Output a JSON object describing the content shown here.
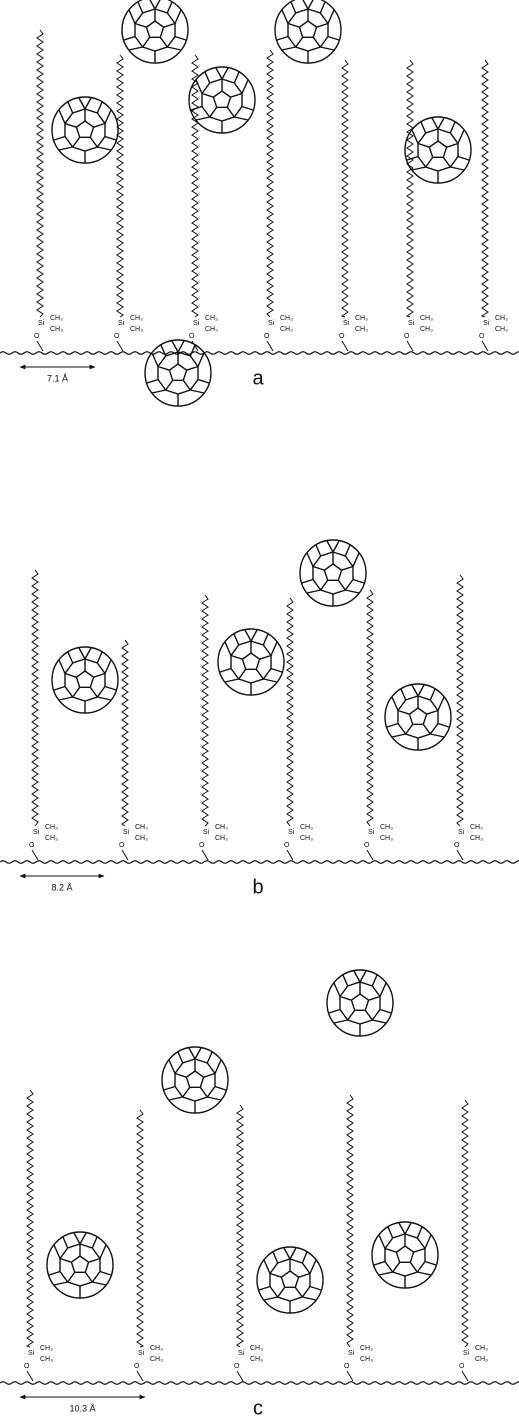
{
  "panels": [
    {
      "label": "a",
      "spacing": "7.1 Å",
      "chains": [
        {
          "si": "Si",
          "methyls": [
            "CH₃",
            "CH₃"
          ],
          "oxygen": "O"
        },
        {
          "si": "Si",
          "methyls": [
            "CH₃",
            "CH₃"
          ],
          "oxygen": "O"
        },
        {
          "si": "Si",
          "methyls": [
            "CH₃",
            "CH₃"
          ],
          "oxygen": "O"
        },
        {
          "si": "Si",
          "methyls": [
            "CH₃",
            "CH₃"
          ],
          "oxygen": "O"
        },
        {
          "si": "Si",
          "methyls": [
            "CH₃",
            "CH₃"
          ],
          "oxygen": "O"
        },
        {
          "si": "Si",
          "methyls": [
            "CH₃",
            "CH₃"
          ],
          "oxygen": "O"
        },
        {
          "si": "Si",
          "methyls": [
            "CH₃",
            "CH₃"
          ],
          "oxygen": "O"
        }
      ]
    },
    {
      "label": "b",
      "spacing": "8.2 Å",
      "chains": [
        {
          "si": "Si",
          "methyls": [
            "CH₃",
            "CH₃"
          ],
          "oxygen": "O"
        },
        {
          "si": "Si",
          "methyls": [
            "CH₃",
            "CH₃"
          ],
          "oxygen": "O"
        },
        {
          "si": "Si",
          "methyls": [
            "CH₃",
            "CH₃"
          ],
          "oxygen": "O"
        },
        {
          "si": "Si",
          "methyls": [
            "CH₃",
            "CH₃"
          ],
          "oxygen": "O"
        },
        {
          "si": "Si",
          "methyls": [
            "CH₃",
            "CH₃"
          ],
          "oxygen": "O"
        },
        {
          "si": "Si",
          "methyls": [
            "CH₃",
            "CH₃"
          ],
          "oxygen": "O"
        }
      ]
    },
    {
      "label": "c",
      "spacing": "10.3 Å",
      "chains": [
        {
          "si": "Si",
          "methyls": [
            "CH₃",
            "CH₃"
          ],
          "oxygen": "O"
        },
        {
          "si": "Si",
          "methyls": [
            "CH₃",
            "CH₃"
          ],
          "oxygen": "O"
        },
        {
          "si": "Si",
          "methyls": [
            "CH₃",
            "CH₃"
          ],
          "oxygen": "O"
        },
        {
          "si": "Si",
          "methyls": [
            "CH₃",
            "CH₃"
          ],
          "oxygen": "O"
        },
        {
          "si": "Si",
          "methyls": [
            "CH₃",
            "CH₃"
          ],
          "oxygen": "O"
        }
      ]
    }
  ]
}
